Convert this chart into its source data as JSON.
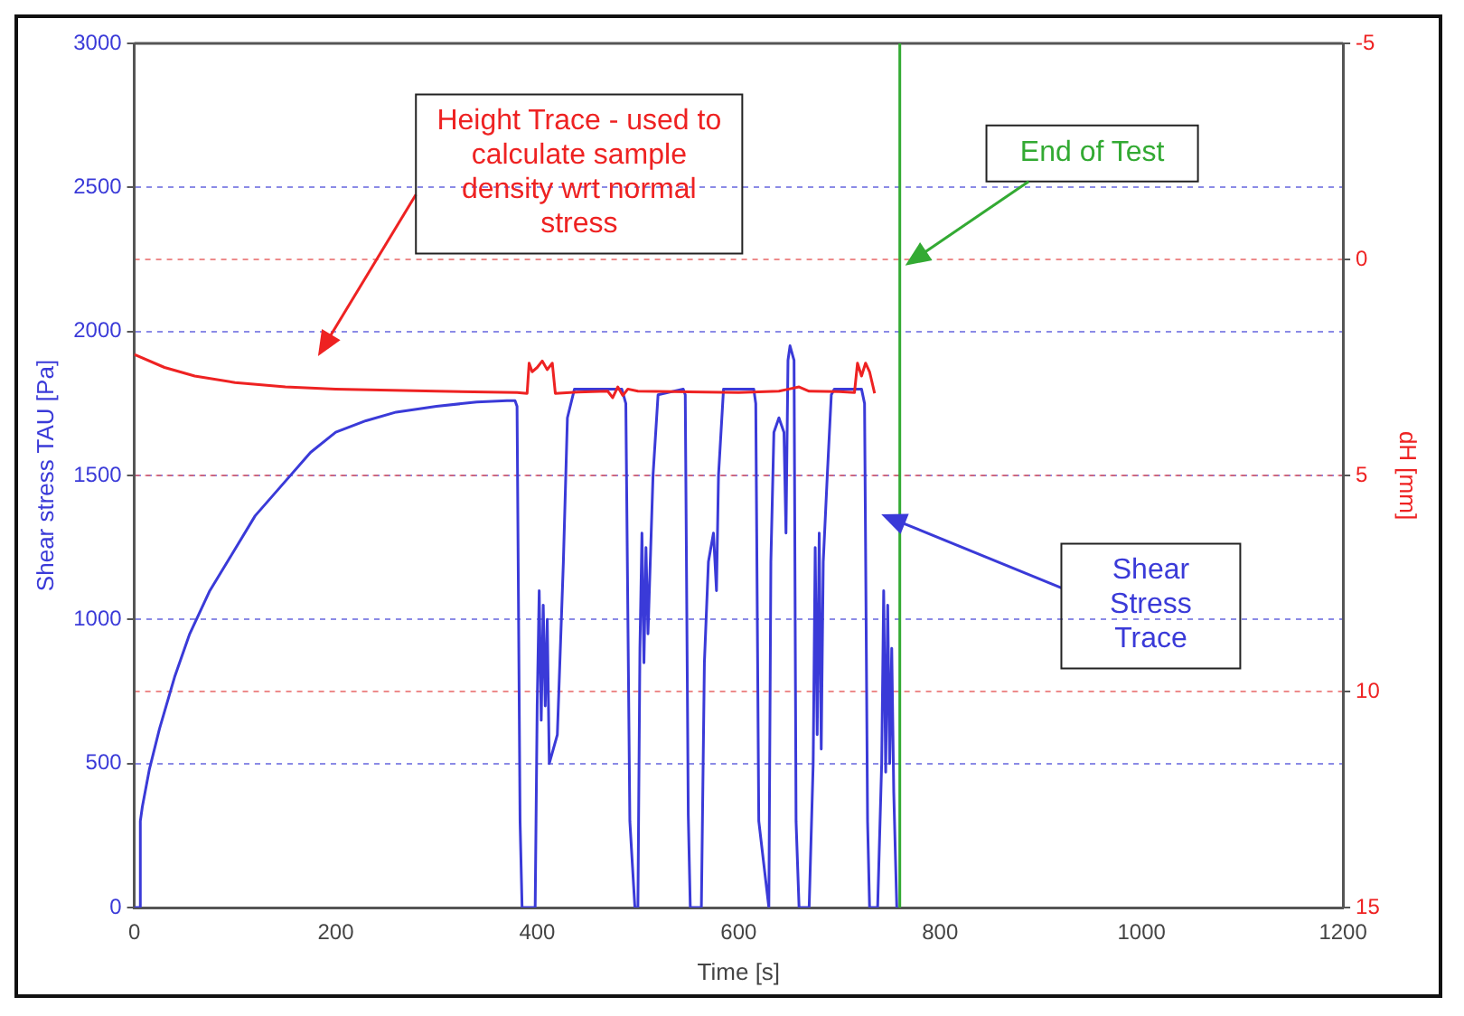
{
  "chart_data": {
    "type": "line",
    "xlabel": "Time [s]",
    "ylabel": "Shear stress TAU [Pa]",
    "y2label": "dH [mm]",
    "xlim": [
      0,
      1200
    ],
    "xticks": [
      0,
      200,
      400,
      600,
      800,
      1000,
      1200
    ],
    "ylim": [
      0,
      3000
    ],
    "yticks": [
      0,
      500,
      1000,
      1500,
      2000,
      2500,
      3000
    ],
    "y2lim": [
      15,
      -5
    ],
    "y2ticks": [
      -5,
      0,
      5,
      10,
      15
    ],
    "grid": "y",
    "legend": false,
    "marker": "none",
    "line_style": "solid",
    "series": [
      {
        "color": "#3a3ad8",
        "x": [
          0,
          5,
          6,
          8,
          15,
          25,
          40,
          55,
          75,
          95,
          120,
          150,
          175,
          200,
          230,
          260,
          300,
          340,
          370,
          378,
          380,
          383,
          385,
          398,
          400,
          402,
          404,
          406,
          408,
          410,
          412,
          420,
          426,
          430,
          437,
          460,
          484,
          488,
          492,
          497,
          500,
          502,
          504,
          506,
          508,
          510,
          515,
          520,
          545,
          547,
          550,
          552,
          563,
          566,
          570,
          575,
          578,
          580,
          585,
          615,
          617,
          620,
          630,
          632,
          635,
          640,
          645,
          647,
          649,
          651,
          655,
          657,
          660,
          670,
          674,
          676,
          678,
          680,
          682,
          684,
          688,
          692,
          695,
          722,
          725,
          728,
          730,
          738,
          742,
          744,
          746,
          748,
          750,
          752,
          754,
          757
        ],
        "values": [
          0,
          0,
          300,
          350,
          480,
          620,
          800,
          950,
          1100,
          1215,
          1360,
          1480,
          1580,
          1650,
          1690,
          1720,
          1740,
          1755,
          1760,
          1760,
          1740,
          300,
          0,
          0,
          700,
          1100,
          650,
          1050,
          700,
          1000,
          500,
          600,
          1200,
          1700,
          1800,
          1800,
          1800,
          1750,
          300,
          0,
          0,
          900,
          1300,
          850,
          1250,
          950,
          1500,
          1780,
          1800,
          1780,
          320,
          0,
          0,
          850,
          1200,
          1300,
          1100,
          1500,
          1800,
          1800,
          1750,
          300,
          0,
          1200,
          1650,
          1700,
          1650,
          1300,
          1900,
          1950,
          1900,
          300,
          0,
          0,
          500,
          1250,
          600,
          1300,
          550,
          1200,
          1500,
          1780,
          1800,
          1800,
          1750,
          300,
          0,
          0,
          500,
          1100,
          470,
          1050,
          500,
          900,
          400,
          0
        ]
      },
      {
        "color": "#ee2222",
        "axis": "y2",
        "x": [
          0,
          30,
          60,
          100,
          150,
          200,
          300,
          380,
          390,
          392,
          395,
          400,
          405,
          410,
          415,
          418,
          440,
          470,
          475,
          480,
          485,
          490,
          500,
          600,
          640,
          650,
          660,
          670,
          700,
          715,
          718,
          722,
          726,
          730,
          735
        ],
        "values": [
          2.2,
          2.5,
          2.7,
          2.85,
          2.95,
          3.0,
          3.05,
          3.08,
          3.1,
          2.4,
          2.6,
          2.5,
          2.35,
          2.55,
          2.4,
          3.1,
          3.07,
          3.05,
          3.2,
          2.95,
          3.15,
          3.0,
          3.05,
          3.08,
          3.05,
          3.0,
          2.95,
          3.05,
          3.06,
          3.08,
          2.4,
          2.7,
          2.4,
          2.6,
          3.1
        ]
      }
    ],
    "ref_lines": [
      {
        "axis": "x",
        "value": 760,
        "label": "End of Test",
        "color": "#33aa33"
      }
    ],
    "annotations": [
      "Height Trace - used to calculate sample density wrt normal stress",
      "Shear Stress Trace"
    ]
  }
}
